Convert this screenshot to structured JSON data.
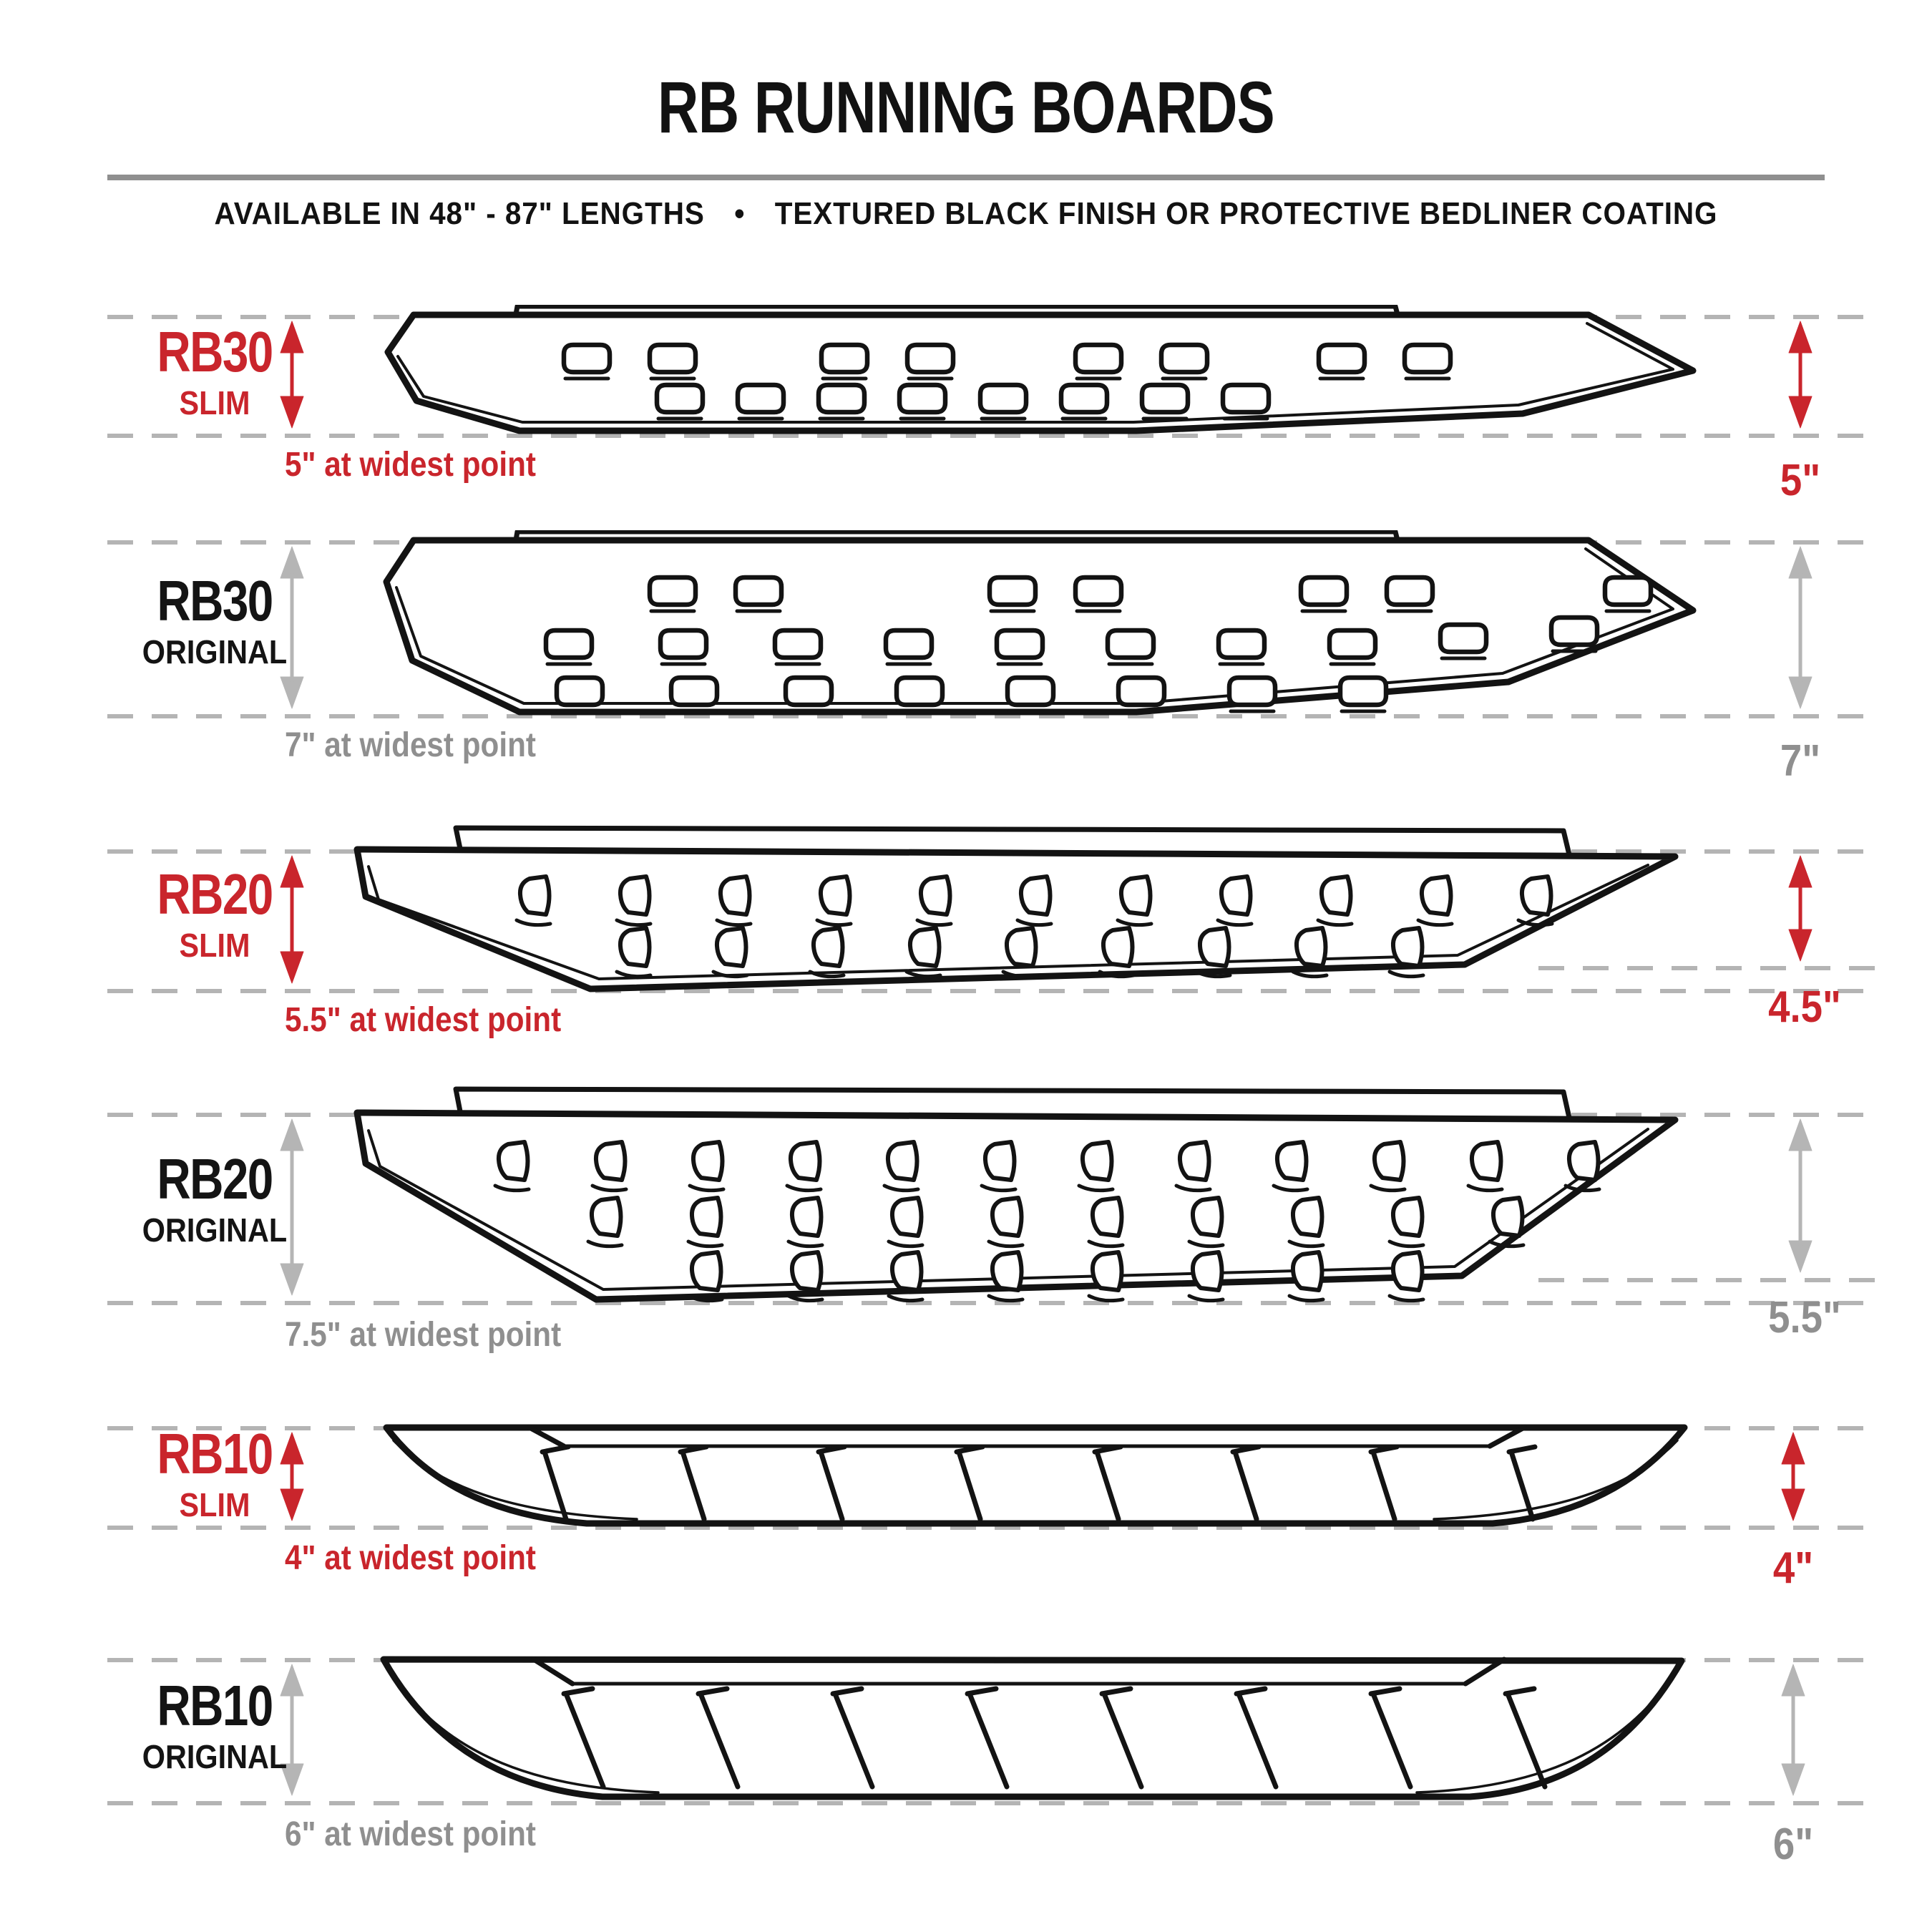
{
  "title": "RB RUNNING BOARDS",
  "subtitle": "AVAILABLE IN 48\" - 87\" LENGTHS • TEXTURED BLACK FINISH OR PROTECTIVE BEDLINER COATING",
  "colors": {
    "accent_red": "#c9252c",
    "muted_gray": "#8f8f8f",
    "dash_gray": "#b4b4b4",
    "arrow_gray": "#b5b5b5",
    "ink": "#141414"
  },
  "rows": [
    {
      "model": "RB30",
      "variant": "SLIM",
      "width_label": "5\" at widest point",
      "height_label": "5\"",
      "highlight": true
    },
    {
      "model": "RB30",
      "variant": "ORIGINAL",
      "width_label": "7\" at widest point",
      "height_label": "7\"",
      "highlight": false
    },
    {
      "model": "RB20",
      "variant": "SLIM",
      "width_label": "5.5\" at widest point",
      "height_label": "4.5\"",
      "highlight": true
    },
    {
      "model": "RB20",
      "variant": "ORIGINAL",
      "width_label": "7.5\" at widest point",
      "height_label": "5.5\"",
      "highlight": false
    },
    {
      "model": "RB10",
      "variant": "SLIM",
      "width_label": "4\" at widest point",
      "height_label": "4\"",
      "highlight": true
    },
    {
      "model": "RB10",
      "variant": "ORIGINAL",
      "width_label": "6\" at widest point",
      "height_label": "6\"",
      "highlight": false
    }
  ]
}
